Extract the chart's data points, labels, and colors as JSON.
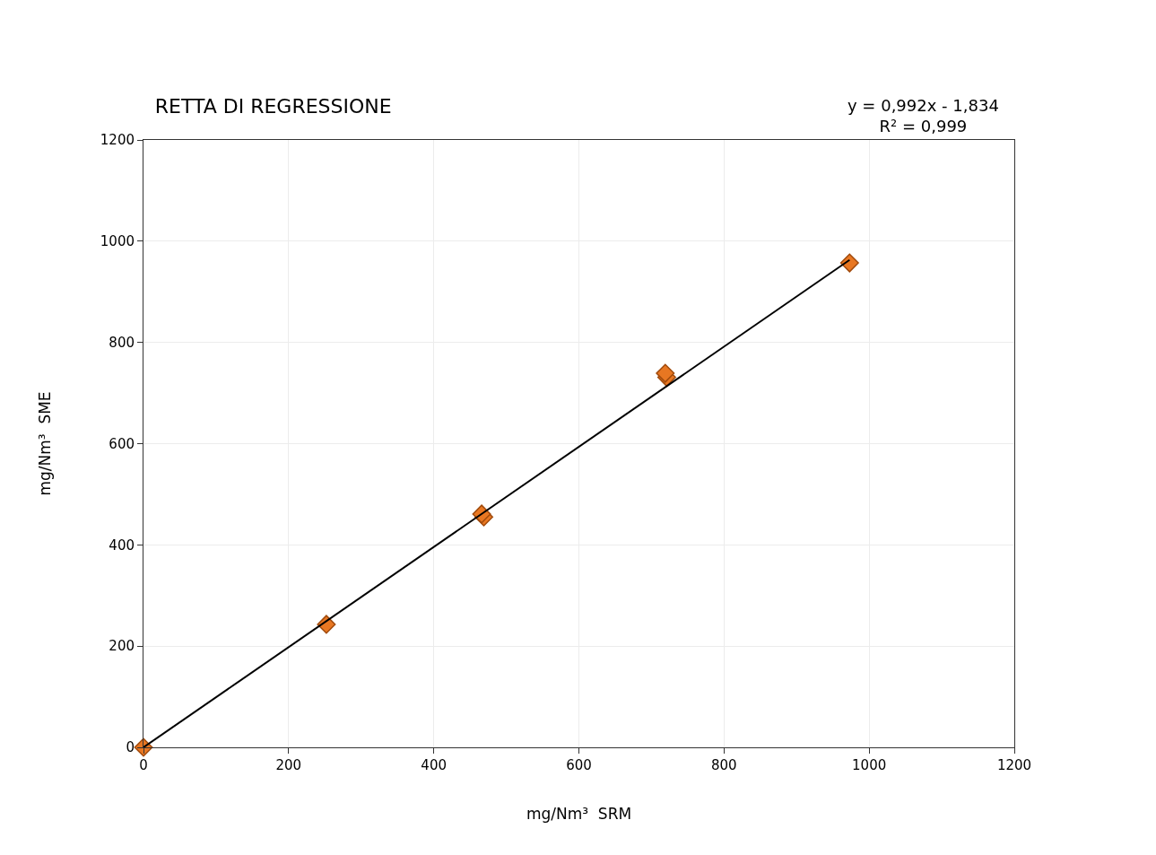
{
  "chart_data": {
    "type": "scatter",
    "title": "RETTA DI REGRESSIONE",
    "xlabel": "mg/Nm³  SRM",
    "ylabel": "mg/Nm³  SME",
    "annotations": [
      "y = 0,992x - 1,834\nR² = 0,999"
    ],
    "x": [
      0,
      252,
      469,
      466,
      721,
      719,
      973
    ],
    "series": [
      {
        "color": "#e87722",
        "values": [
          0,
          243,
          455,
          461,
          731,
          739,
          957
        ]
      },
      {
        "type": "line",
        "color": "#000000",
        "x": [
          0,
          973
        ],
        "values": [
          0,
          963
        ],
        "marker": "none"
      }
    ],
    "marker": "diamond",
    "xlim": [
      0,
      1200
    ],
    "ylim": [
      0,
      1200
    ],
    "xticks": [
      0,
      200,
      400,
      600,
      800,
      1000,
      1200
    ],
    "yticks": [
      0,
      200,
      400,
      600,
      800,
      1000,
      1200
    ],
    "grid": true
  }
}
